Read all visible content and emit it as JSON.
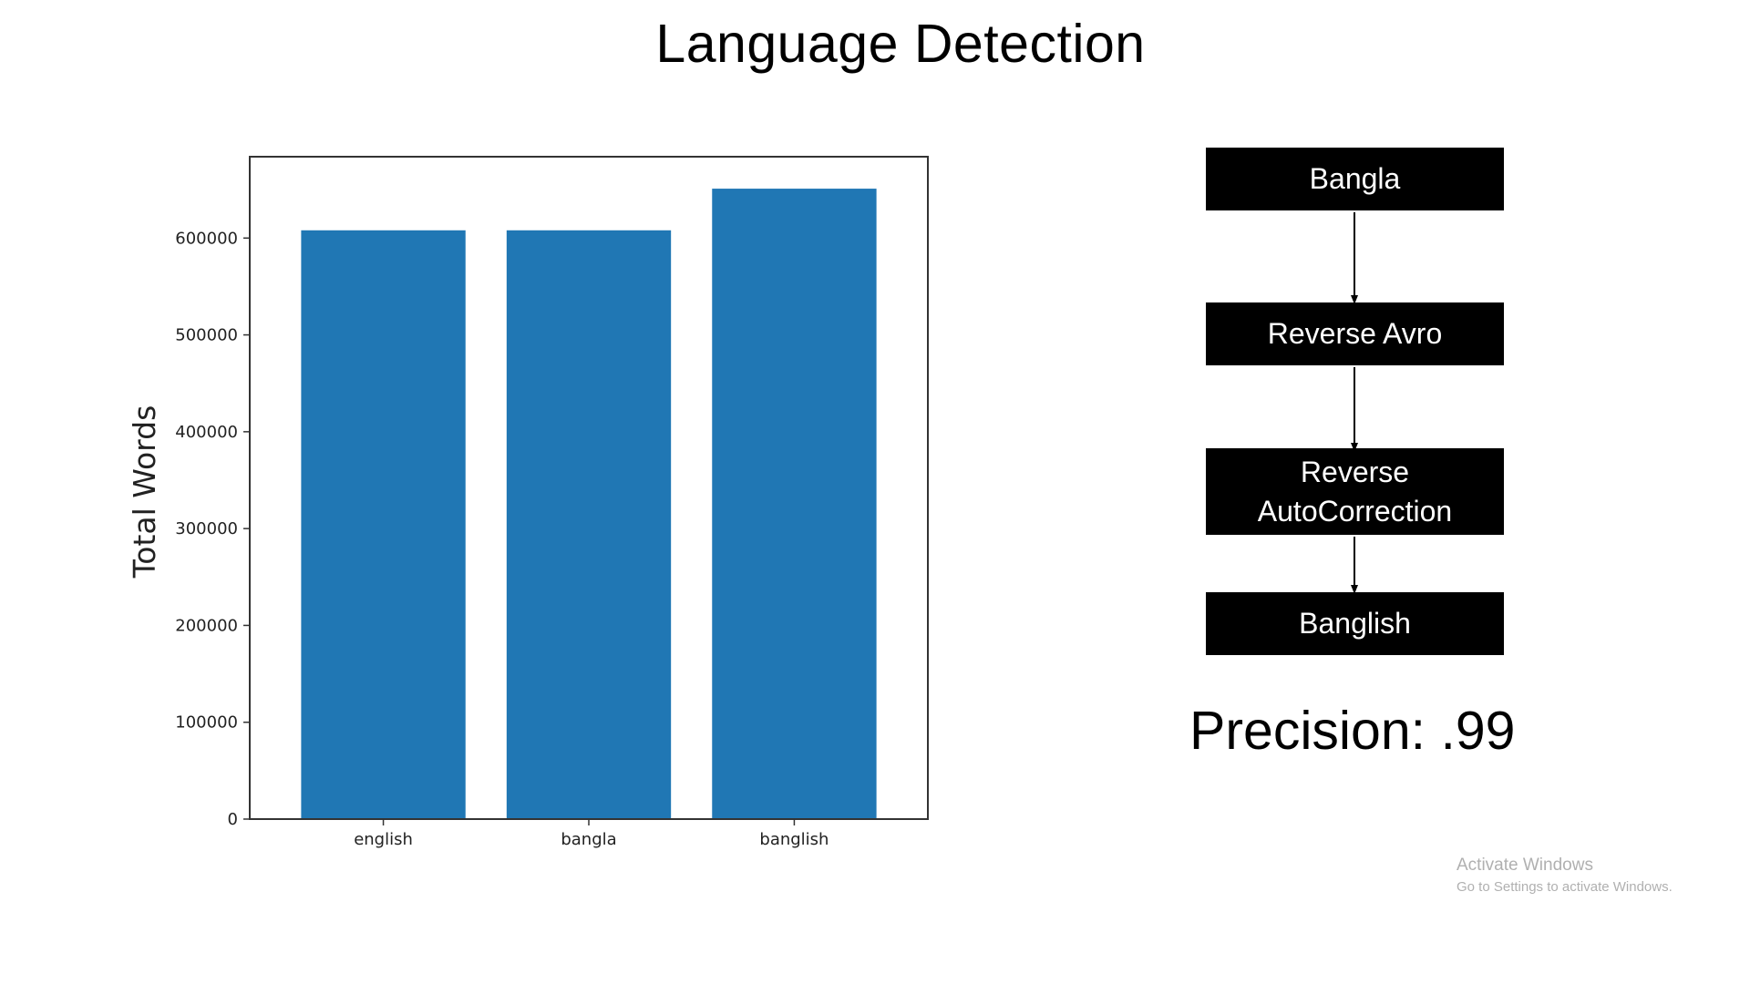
{
  "slide": {
    "title": "Language Detection",
    "precision_text": "Precision: .99"
  },
  "flowchart": {
    "steps": [
      {
        "label": "Bangla"
      },
      {
        "label": "Reverse Avro"
      },
      {
        "label_line1": "Reverse",
        "label_line2": "AutoCorrection"
      },
      {
        "label": "Banglish"
      }
    ]
  },
  "watermark": {
    "line1": "Activate Windows",
    "line2": "Go to Settings to activate Windows."
  },
  "colors": {
    "bar": "#2077b4",
    "flow_box": "#000000",
    "watermark": "#b0b0b0"
  },
  "chart_data": {
    "type": "bar",
    "categories": [
      "english",
      "bangla",
      "banglish"
    ],
    "values": [
      608000,
      608000,
      651000
    ],
    "ylabel": "Total Words",
    "xlabel": "",
    "ylim": [
      0,
      684000
    ],
    "yticks": [
      0,
      100000,
      200000,
      300000,
      400000,
      500000,
      600000
    ],
    "ytick_labels": [
      "0",
      "100000",
      "200000",
      "300000",
      "400000",
      "500000",
      "600000"
    ],
    "grid": false
  }
}
